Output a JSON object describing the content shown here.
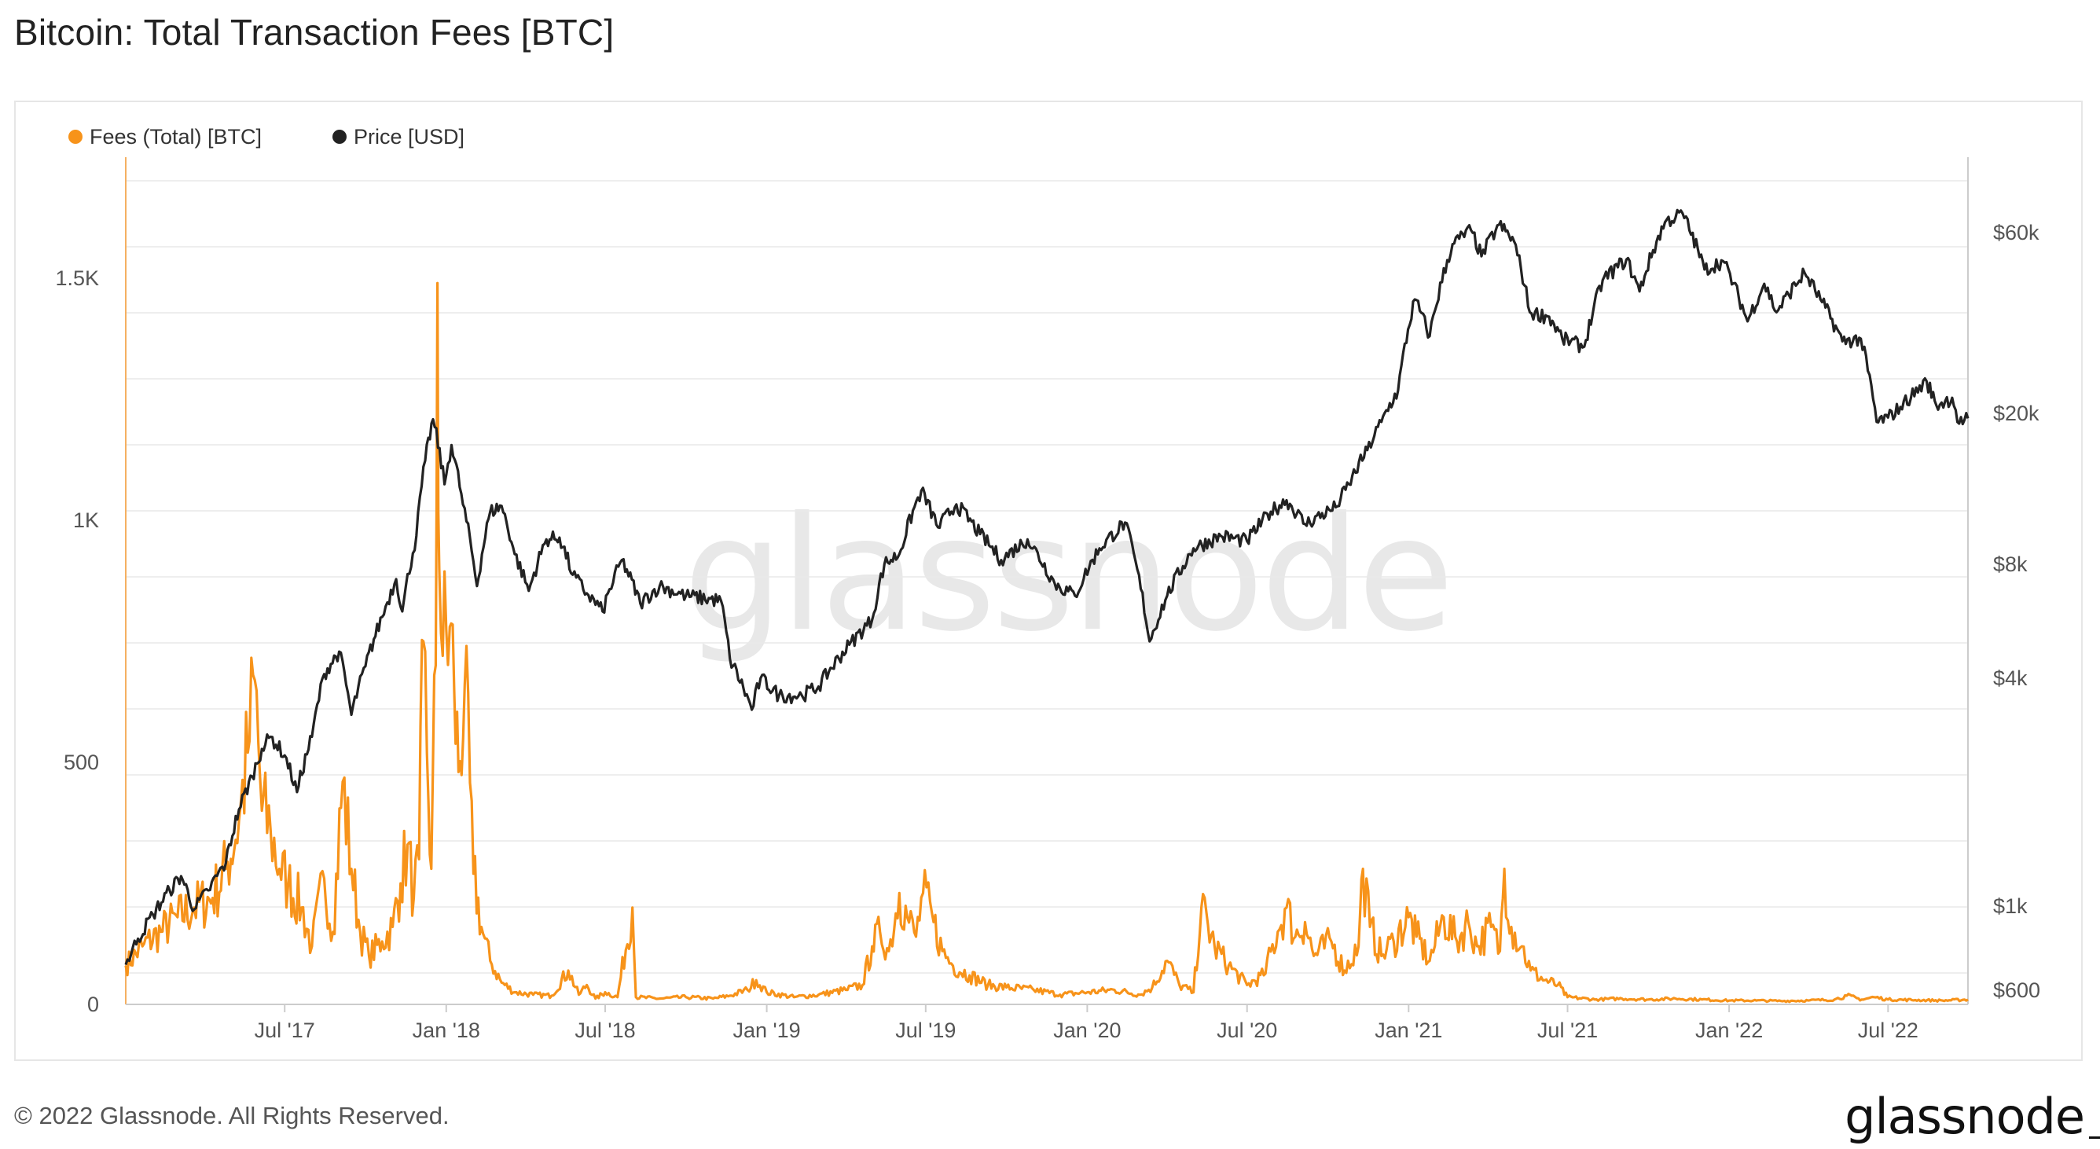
{
  "title": "Bitcoin: Total Transaction Fees [BTC]",
  "footer": {
    "copyright": "© 2022 Glassnode. All Rights Reserved.",
    "logo": "glassnode"
  },
  "watermark": "glassnode",
  "colors": {
    "fees": "#f7931a",
    "price": "#222222",
    "grid": "#e9e9e9",
    "axis_line": "#cccccc",
    "fees_axis_line": "#f5b062"
  },
  "chart_data": {
    "type": "line",
    "title": "Bitcoin: Total Transaction Fees [BTC]",
    "xlabel": "",
    "ylabel": "",
    "legend_position": "top-left",
    "x_tick_labels": [
      "Jul '17",
      "Jan '18",
      "Jul '18",
      "Jan '19",
      "Jul '19",
      "Jan '20",
      "Jul '20",
      "Jan '21",
      "Jul '21",
      "Jan '22",
      "Jul '22"
    ],
    "x_tick_dates": [
      "2017-07-01",
      "2018-01-01",
      "2018-07-01",
      "2019-01-01",
      "2019-07-01",
      "2020-01-01",
      "2020-07-01",
      "2021-01-01",
      "2021-07-01",
      "2022-01-01",
      "2022-07-01"
    ],
    "x_range": [
      "2017-01-01",
      "2022-09-30"
    ],
    "left_axis": {
      "tick_labels": [
        "0",
        "500",
        "1K",
        "1.5K"
      ],
      "tick_values": [
        0,
        500,
        1000,
        1500
      ],
      "ylim": [
        0,
        1750
      ]
    },
    "right_axis": {
      "scale": "log",
      "tick_labels": [
        "$600",
        "$1k",
        "$4k",
        "$8k",
        "$20k",
        "$60k"
      ],
      "tick_values": [
        600,
        1000,
        4000,
        8000,
        20000,
        60000
      ],
      "ylim": [
        550,
        95000
      ]
    },
    "grid": true,
    "series": [
      {
        "name": "Fees (Total) [BTC]",
        "axis": "left",
        "color": "#f7931a",
        "points": [
          [
            "2017-01-01",
            80
          ],
          [
            "2017-01-20",
            120
          ],
          [
            "2017-02-10",
            150
          ],
          [
            "2017-03-01",
            180
          ],
          [
            "2017-03-20",
            200
          ],
          [
            "2017-04-10",
            220
          ],
          [
            "2017-04-25",
            280
          ],
          [
            "2017-05-10",
            380
          ],
          [
            "2017-05-20",
            520
          ],
          [
            "2017-05-28",
            670
          ],
          [
            "2017-06-05",
            400
          ],
          [
            "2017-06-15",
            360
          ],
          [
            "2017-06-25",
            280
          ],
          [
            "2017-07-05",
            250
          ],
          [
            "2017-07-20",
            200
          ],
          [
            "2017-08-01",
            120
          ],
          [
            "2017-08-15",
            260
          ],
          [
            "2017-08-25",
            150
          ],
          [
            "2017-09-05",
            460
          ],
          [
            "2017-09-15",
            280
          ],
          [
            "2017-09-25",
            150
          ],
          [
            "2017-10-05",
            100
          ],
          [
            "2017-10-20",
            130
          ],
          [
            "2017-11-01",
            160
          ],
          [
            "2017-11-10",
            250
          ],
          [
            "2017-11-18",
            330
          ],
          [
            "2017-11-25",
            220
          ],
          [
            "2017-12-01",
            300
          ],
          [
            "2017-12-06",
            750
          ],
          [
            "2017-12-10",
            520
          ],
          [
            "2017-12-15",
            280
          ],
          [
            "2017-12-20",
            700
          ],
          [
            "2017-12-22",
            1490
          ],
          [
            "2017-12-24",
            900
          ],
          [
            "2017-12-28",
            720
          ],
          [
            "2018-01-05",
            780
          ],
          [
            "2018-01-10",
            650
          ],
          [
            "2018-01-15",
            480
          ],
          [
            "2018-01-22",
            660
          ],
          [
            "2018-02-01",
            270
          ],
          [
            "2018-02-10",
            160
          ],
          [
            "2018-02-20",
            90
          ],
          [
            "2018-03-05",
            45
          ],
          [
            "2018-03-20",
            25
          ],
          [
            "2018-04-10",
            20
          ],
          [
            "2018-05-01",
            18
          ],
          [
            "2018-05-20",
            70
          ],
          [
            "2018-06-01",
            20
          ],
          [
            "2018-06-10",
            40
          ],
          [
            "2018-06-20",
            12
          ],
          [
            "2018-07-01",
            25
          ],
          [
            "2018-07-15",
            15
          ],
          [
            "2018-08-01",
            200
          ],
          [
            "2018-08-05",
            15
          ],
          [
            "2018-09-01",
            12
          ],
          [
            "2018-10-01",
            15
          ],
          [
            "2018-11-01",
            12
          ],
          [
            "2018-11-20",
            18
          ],
          [
            "2018-12-10",
            30
          ],
          [
            "2018-12-20",
            50
          ],
          [
            "2019-01-01",
            25
          ],
          [
            "2019-02-01",
            15
          ],
          [
            "2019-03-01",
            20
          ],
          [
            "2019-04-01",
            30
          ],
          [
            "2019-04-20",
            40
          ],
          [
            "2019-05-01",
            120
          ],
          [
            "2019-05-10",
            150
          ],
          [
            "2019-05-20",
            110
          ],
          [
            "2019-06-01",
            230
          ],
          [
            "2019-06-10",
            180
          ],
          [
            "2019-06-20",
            140
          ],
          [
            "2019-06-28",
            230
          ],
          [
            "2019-07-10",
            170
          ],
          [
            "2019-07-20",
            110
          ],
          [
            "2019-08-01",
            80
          ],
          [
            "2019-08-20",
            60
          ],
          [
            "2019-09-10",
            40
          ],
          [
            "2019-10-01",
            35
          ],
          [
            "2019-11-01",
            30
          ],
          [
            "2019-12-01",
            20
          ],
          [
            "2020-01-01",
            25
          ],
          [
            "2020-02-01",
            30
          ],
          [
            "2020-03-01",
            20
          ],
          [
            "2020-03-15",
            35
          ],
          [
            "2020-04-01",
            90
          ],
          [
            "2020-04-15",
            40
          ],
          [
            "2020-05-01",
            25
          ],
          [
            "2020-05-10",
            200
          ],
          [
            "2020-05-25",
            120
          ],
          [
            "2020-06-10",
            80
          ],
          [
            "2020-07-01",
            40
          ],
          [
            "2020-07-20",
            60
          ],
          [
            "2020-08-05",
            150
          ],
          [
            "2020-08-15",
            200
          ],
          [
            "2020-08-25",
            140
          ],
          [
            "2020-09-05",
            170
          ],
          [
            "2020-09-15",
            100
          ],
          [
            "2020-10-05",
            130
          ],
          [
            "2020-10-20",
            70
          ],
          [
            "2020-11-05",
            120
          ],
          [
            "2020-11-10",
            280
          ],
          [
            "2020-11-18",
            160
          ],
          [
            "2020-12-01",
            100
          ],
          [
            "2020-12-15",
            130
          ],
          [
            "2021-01-01",
            180
          ],
          [
            "2021-01-10",
            140
          ],
          [
            "2021-01-25",
            90
          ],
          [
            "2021-02-10",
            180
          ],
          [
            "2021-02-25",
            130
          ],
          [
            "2021-03-10",
            170
          ],
          [
            "2021-03-20",
            120
          ],
          [
            "2021-04-05",
            160
          ],
          [
            "2021-04-15",
            110
          ],
          [
            "2021-04-20",
            280
          ],
          [
            "2021-04-28",
            160
          ],
          [
            "2021-05-10",
            120
          ],
          [
            "2021-05-20",
            70
          ],
          [
            "2021-06-05",
            50
          ],
          [
            "2021-06-20",
            40
          ],
          [
            "2021-07-01",
            15
          ],
          [
            "2021-08-01",
            10
          ],
          [
            "2021-09-01",
            12
          ],
          [
            "2021-10-01",
            10
          ],
          [
            "2021-11-01",
            12
          ],
          [
            "2021-12-01",
            10
          ],
          [
            "2022-01-01",
            8
          ],
          [
            "2022-02-01",
            8
          ],
          [
            "2022-03-01",
            7
          ],
          [
            "2022-04-01",
            8
          ],
          [
            "2022-05-01",
            10
          ],
          [
            "2022-05-15",
            18
          ],
          [
            "2022-06-01",
            10
          ],
          [
            "2022-06-15",
            15
          ],
          [
            "2022-07-01",
            10
          ],
          [
            "2022-08-01",
            9
          ],
          [
            "2022-09-01",
            8
          ],
          [
            "2022-09-30",
            10
          ]
        ]
      },
      {
        "name": "Price [USD]",
        "axis": "right",
        "color": "#222222",
        "points": [
          [
            "2017-01-01",
            700
          ],
          [
            "2017-01-15",
            820
          ],
          [
            "2017-02-01",
            950
          ],
          [
            "2017-02-20",
            1100
          ],
          [
            "2017-03-05",
            1200
          ],
          [
            "2017-03-20",
            980
          ],
          [
            "2017-04-05",
            1100
          ],
          [
            "2017-04-25",
            1300
          ],
          [
            "2017-05-10",
            1800
          ],
          [
            "2017-05-25",
            2200
          ],
          [
            "2017-06-05",
            2600
          ],
          [
            "2017-06-15",
            2800
          ],
          [
            "2017-07-01",
            2500
          ],
          [
            "2017-07-15",
            2000
          ],
          [
            "2017-08-01",
            2800
          ],
          [
            "2017-08-15",
            4100
          ],
          [
            "2017-09-01",
            4700
          ],
          [
            "2017-09-15",
            3200
          ],
          [
            "2017-10-01",
            4300
          ],
          [
            "2017-10-20",
            5800
          ],
          [
            "2017-11-05",
            7300
          ],
          [
            "2017-11-12",
            6000
          ],
          [
            "2017-11-28",
            9500
          ],
          [
            "2017-12-08",
            15000
          ],
          [
            "2017-12-17",
            19300
          ],
          [
            "2017-12-30",
            13000
          ],
          [
            "2018-01-07",
            16500
          ],
          [
            "2018-01-20",
            11500
          ],
          [
            "2018-02-05",
            7000
          ],
          [
            "2018-02-20",
            11000
          ],
          [
            "2018-03-05",
            11400
          ],
          [
            "2018-03-20",
            8500
          ],
          [
            "2018-04-05",
            6800
          ],
          [
            "2018-04-25",
            9300
          ],
          [
            "2018-05-10",
            9400
          ],
          [
            "2018-05-25",
            7500
          ],
          [
            "2018-06-10",
            6700
          ],
          [
            "2018-06-28",
            6000
          ],
          [
            "2018-07-20",
            8200
          ],
          [
            "2018-08-10",
            6300
          ],
          [
            "2018-09-01",
            7000
          ],
          [
            "2018-10-01",
            6600
          ],
          [
            "2018-11-10",
            6400
          ],
          [
            "2018-11-20",
            4500
          ],
          [
            "2018-12-15",
            3300
          ],
          [
            "2018-12-25",
            4000
          ],
          [
            "2019-01-15",
            3600
          ],
          [
            "2019-02-10",
            3600
          ],
          [
            "2019-03-01",
            3800
          ],
          [
            "2019-04-05",
            4900
          ],
          [
            "2019-05-01",
            5700
          ],
          [
            "2019-05-15",
            8000
          ],
          [
            "2019-06-01",
            8500
          ],
          [
            "2019-06-26",
            12500
          ],
          [
            "2019-07-15",
            10000
          ],
          [
            "2019-08-05",
            11500
          ],
          [
            "2019-09-01",
            9600
          ],
          [
            "2019-09-25",
            8200
          ],
          [
            "2019-10-25",
            9300
          ],
          [
            "2019-11-25",
            7100
          ],
          [
            "2019-12-18",
            6600
          ],
          [
            "2020-01-15",
            8800
          ],
          [
            "2020-02-13",
            10300
          ],
          [
            "2020-03-12",
            5000
          ],
          [
            "2020-04-01",
            6600
          ],
          [
            "2020-05-01",
            8800
          ],
          [
            "2020-06-01",
            9500
          ],
          [
            "2020-07-01",
            9200
          ],
          [
            "2020-07-28",
            11000
          ],
          [
            "2020-08-15",
            11800
          ],
          [
            "2020-09-05",
            10200
          ],
          [
            "2020-10-10",
            11300
          ],
          [
            "2020-10-25",
            13000
          ],
          [
            "2020-11-15",
            16000
          ],
          [
            "2020-12-01",
            19000
          ],
          [
            "2020-12-20",
            23000
          ],
          [
            "2021-01-08",
            40000
          ],
          [
            "2021-01-25",
            32000
          ],
          [
            "2021-02-20",
            56000
          ],
          [
            "2021-03-13",
            61000
          ],
          [
            "2021-03-25",
            52000
          ],
          [
            "2021-04-14",
            63000
          ],
          [
            "2021-05-01",
            57000
          ],
          [
            "2021-05-19",
            37000
          ],
          [
            "2021-06-10",
            36000
          ],
          [
            "2021-06-25",
            31500
          ],
          [
            "2021-07-20",
            30000
          ],
          [
            "2021-08-10",
            45000
          ],
          [
            "2021-09-06",
            51000
          ],
          [
            "2021-09-21",
            42000
          ],
          [
            "2021-10-20",
            64000
          ],
          [
            "2021-11-09",
            67500
          ],
          [
            "2021-12-04",
            48000
          ],
          [
            "2021-12-25",
            50500
          ],
          [
            "2022-01-22",
            35000
          ],
          [
            "2022-02-10",
            44000
          ],
          [
            "2022-02-24",
            37000
          ],
          [
            "2022-03-28",
            47000
          ],
          [
            "2022-04-15",
            40000
          ],
          [
            "2022-05-10",
            31000
          ],
          [
            "2022-05-31",
            31500
          ],
          [
            "2022-06-18",
            19000
          ],
          [
            "2022-07-01",
            19500
          ],
          [
            "2022-07-15",
            20800
          ],
          [
            "2022-08-14",
            24300
          ],
          [
            "2022-08-25",
            21000
          ],
          [
            "2022-09-12",
            22000
          ],
          [
            "2022-09-20",
            18800
          ],
          [
            "2022-09-30",
            19400
          ]
        ]
      }
    ]
  }
}
